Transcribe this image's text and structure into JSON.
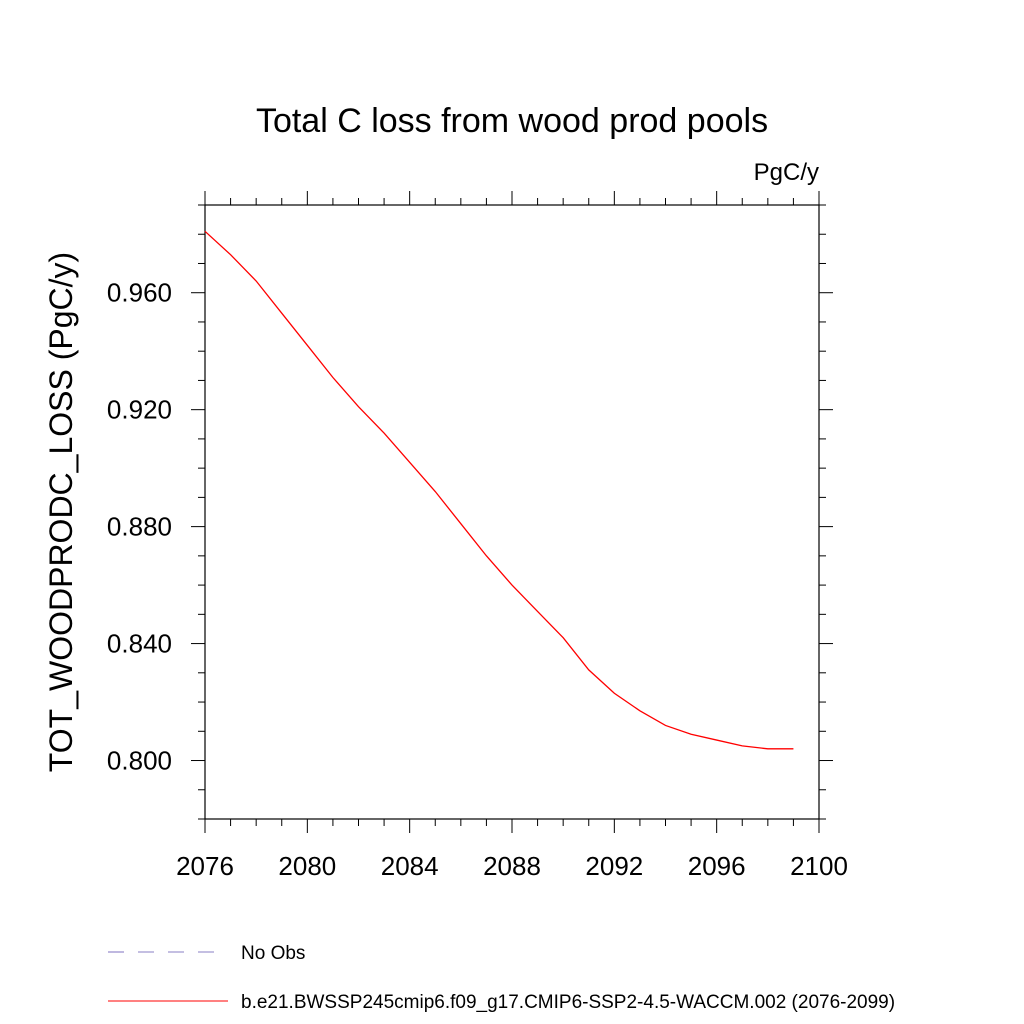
{
  "chart_data": {
    "type": "line",
    "title": "Total C loss from wood prod pools",
    "units_label": "PgC/y",
    "xlabel": "",
    "ylabel": "TOT_WOODPRODC_LOSS  (PgC/y)",
    "xlim": [
      2076,
      2100
    ],
    "ylim": [
      0.78,
      0.99
    ],
    "x_ticks": [
      2076,
      2080,
      2084,
      2088,
      2092,
      2096,
      2100
    ],
    "x_tick_labels": [
      "2076",
      "2080",
      "2084",
      "2088",
      "2092",
      "2096",
      "2100"
    ],
    "y_ticks": [
      0.8,
      0.84,
      0.88,
      0.92,
      0.96
    ],
    "y_tick_labels": [
      "0.800",
      "0.840",
      "0.880",
      "0.920",
      "0.960"
    ],
    "grid": false,
    "legend_position": "bottom",
    "series": [
      {
        "name": "b.e21.BWSSP245cmip6.f09_g17.CMIP6-SSP2-4.5-WACCM.002 (2076-2099)",
        "color": "#ff0000",
        "dash": "solid",
        "x": [
          2076,
          2077,
          2078,
          2079,
          2080,
          2081,
          2082,
          2083,
          2084,
          2085,
          2086,
          2087,
          2088,
          2089,
          2090,
          2091,
          2092,
          2093,
          2094,
          2095,
          2096,
          2097,
          2098,
          2099
        ],
        "y": [
          0.981,
          0.973,
          0.964,
          0.953,
          0.942,
          0.931,
          0.921,
          0.912,
          0.902,
          0.892,
          0.881,
          0.87,
          0.86,
          0.851,
          0.842,
          0.831,
          0.823,
          0.817,
          0.812,
          0.809,
          0.807,
          0.805,
          0.804,
          0.804
        ]
      }
    ],
    "legend": [
      {
        "label": "No Obs",
        "color": "#8a7fc6",
        "dash": "dashed"
      },
      {
        "label": "b.e21.BWSSP245cmip6.f09_g17.CMIP6-SSP2-4.5-WACCM.002 (2076-2099)",
        "color": "#ff0000",
        "dash": "solid"
      }
    ]
  }
}
